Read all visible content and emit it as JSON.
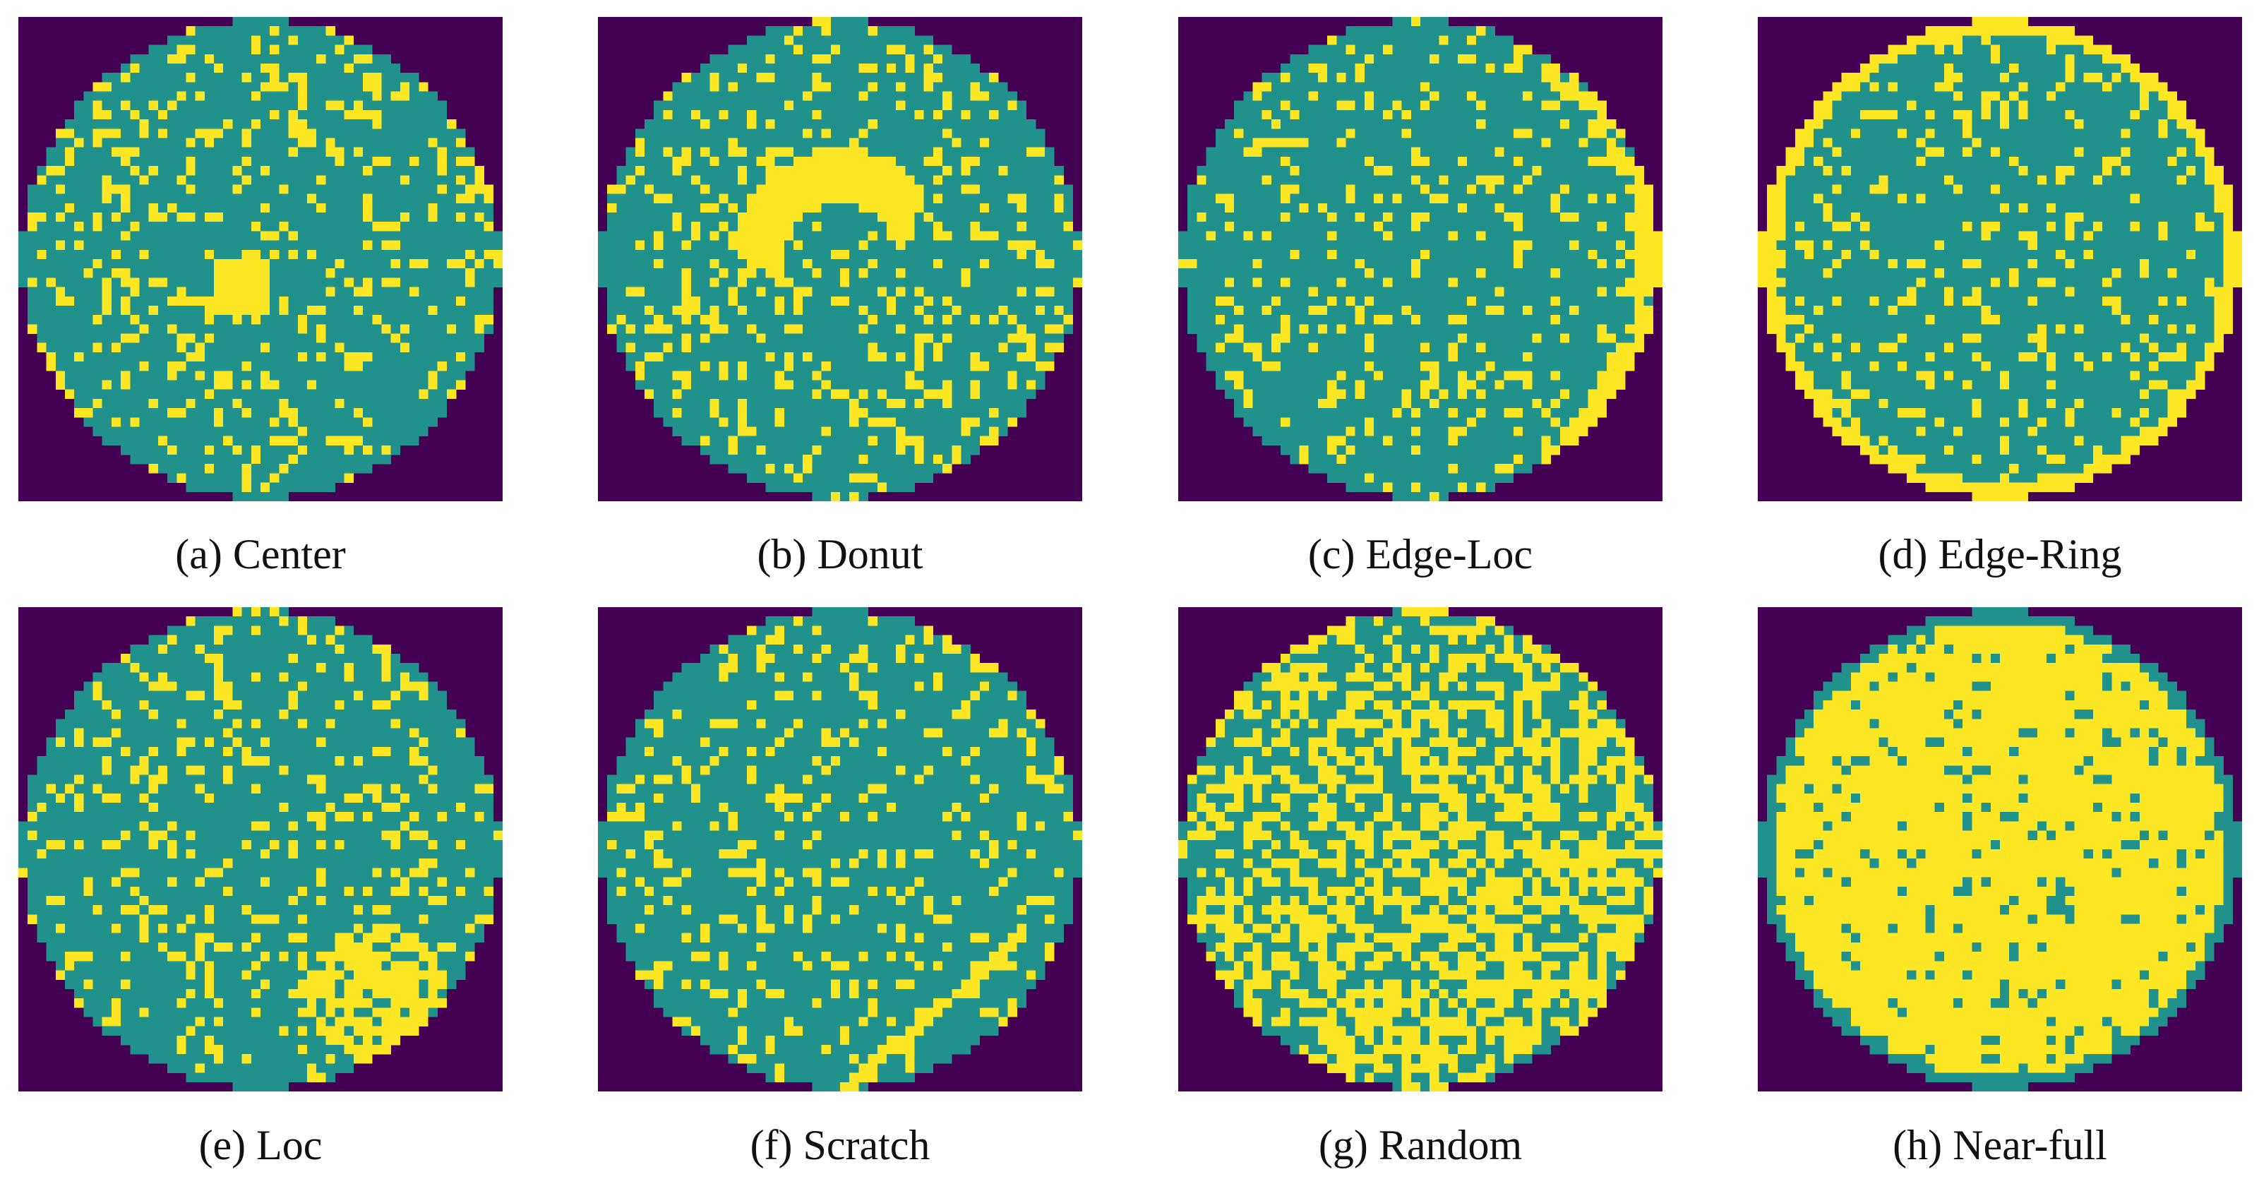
{
  "colors": {
    "background": "#440154",
    "normal_die": "#21918c",
    "defect_die": "#fde725"
  },
  "grid_size": 52,
  "panels": [
    {
      "id": "a",
      "caption": "(a) Center",
      "pattern": "center"
    },
    {
      "id": "b",
      "caption": "(b) Donut",
      "pattern": "donut"
    },
    {
      "id": "c",
      "caption": "(c) Edge-Loc",
      "pattern": "edge-loc"
    },
    {
      "id": "d",
      "caption": "(d) Edge-Ring",
      "pattern": "edge-ring"
    },
    {
      "id": "e",
      "caption": "(e) Loc",
      "pattern": "loc"
    },
    {
      "id": "f",
      "caption": "(f) Scratch",
      "pattern": "scratch"
    },
    {
      "id": "g",
      "caption": "(g) Random",
      "pattern": "random"
    },
    {
      "id": "h",
      "caption": "(h) Near-full",
      "pattern": "near-full"
    }
  ]
}
